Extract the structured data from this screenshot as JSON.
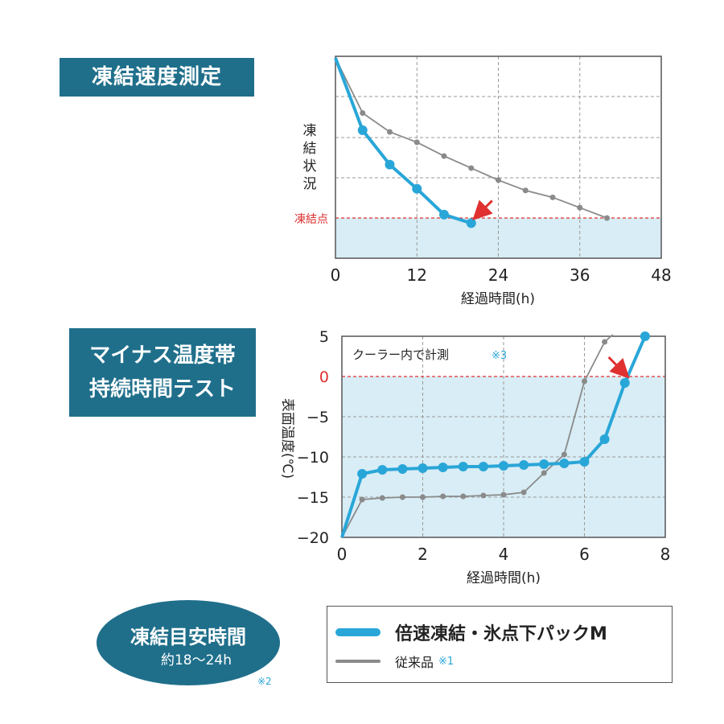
{
  "titles": {
    "freeze_speed": "凍結速度測定",
    "minus_duration_line1": "マイナス温度帯",
    "minus_duration_line2": "持続時間テスト"
  },
  "estimate": {
    "title": "凍結目安時間",
    "value": "約18〜24h",
    "note": "※2"
  },
  "legend": {
    "series1": "倍速凍結・氷点下パックM",
    "series2": "従来品",
    "series2_note": "※1"
  },
  "colors": {
    "accent": "#29a6d8",
    "baseline": "#8a8a8a",
    "highlight_bg": "#d8edf5",
    "marker_red": "#e03030",
    "label_box": "#1f6f8b"
  },
  "chart_data": [
    {
      "type": "line",
      "title": "凍結速度測定",
      "xlabel": "経過時間(h)",
      "ylabel": "凍結状況",
      "xlim": [
        0,
        48
      ],
      "x_ticks": [
        "0",
        "12",
        "24",
        "36",
        "48"
      ],
      "threshold_label": "凍結点",
      "series": [
        {
          "name": "倍速凍結・氷点下パックM",
          "points": [
            [
              0,
              100
            ],
            [
              4,
              58
            ],
            [
              8,
              38
            ],
            [
              12,
              24
            ],
            [
              16,
              9
            ],
            [
              20,
              4
            ]
          ]
        },
        {
          "name": "従来品",
          "points": [
            [
              0,
              100
            ],
            [
              4,
              68
            ],
            [
              8,
              57
            ],
            [
              12,
              51
            ],
            [
              16,
              43
            ],
            [
              20,
              36
            ],
            [
              24,
              29
            ],
            [
              28,
              23
            ],
            [
              32,
              19
            ],
            [
              36,
              13
            ],
            [
              40,
              7
            ]
          ]
        }
      ],
      "freeze_level": 7,
      "grid": true
    },
    {
      "type": "line",
      "title": "マイナス温度帯持続時間テスト",
      "xlabel": "経過時間(h)",
      "ylabel": "表面温度(℃)",
      "xlim": [
        0,
        8
      ],
      "ylim": [
        -20,
        5
      ],
      "x_ticks": [
        "0",
        "2",
        "4",
        "6",
        "8"
      ],
      "y_ticks": [
        "5",
        "0",
        "−5",
        "−10",
        "−15",
        "−20"
      ],
      "annotation": "クーラー内で計測",
      "annotation_note": "※3",
      "series": [
        {
          "name": "倍速凍結・氷点下パックM",
          "points": [
            [
              0,
              -20
            ],
            [
              0.5,
              -12.1
            ],
            [
              1,
              -11.6
            ],
            [
              1.5,
              -11.5
            ],
            [
              2,
              -11.4
            ],
            [
              2.5,
              -11.3
            ],
            [
              3,
              -11.2
            ],
            [
              3.5,
              -11.2
            ],
            [
              4,
              -11.1
            ],
            [
              4.5,
              -11.0
            ],
            [
              5,
              -10.9
            ],
            [
              5.5,
              -10.8
            ],
            [
              6,
              -10.6
            ],
            [
              6.5,
              -7.8
            ],
            [
              7,
              -0.8
            ],
            [
              7.5,
              5.0
            ]
          ]
        },
        {
          "name": "従来品",
          "points": [
            [
              0,
              -20
            ],
            [
              0.5,
              -15.3
            ],
            [
              1,
              -15.1
            ],
            [
              1.5,
              -15.0
            ],
            [
              2,
              -15.0
            ],
            [
              2.5,
              -14.9
            ],
            [
              3,
              -14.9
            ],
            [
              3.5,
              -14.8
            ],
            [
              4,
              -14.7
            ],
            [
              4.5,
              -14.4
            ],
            [
              5,
              -12.0
            ],
            [
              5.5,
              -9.7
            ],
            [
              6,
              -0.6
            ],
            [
              6.5,
              4.3
            ],
            [
              6.7,
              5.2
            ]
          ]
        }
      ],
      "reference_line": 0,
      "grid": true
    }
  ]
}
